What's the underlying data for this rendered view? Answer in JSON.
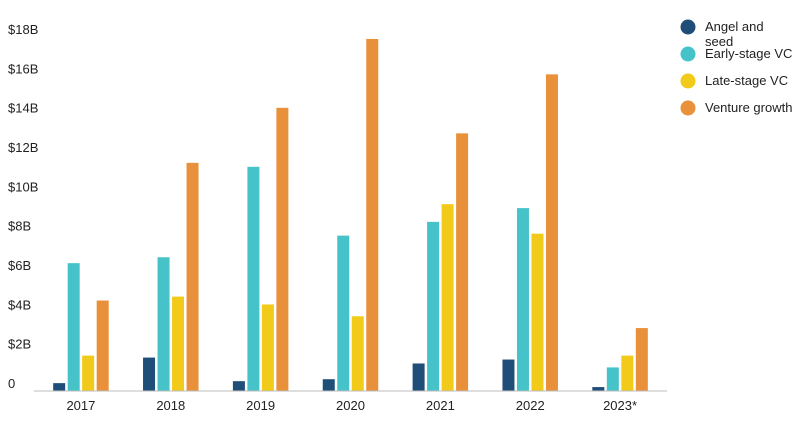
{
  "chart_data": {
    "type": "bar",
    "title": "",
    "xlabel": "",
    "ylabel": "",
    "categories": [
      "2017",
      "2018",
      "2019",
      "2020",
      "2021",
      "2022",
      "2023*"
    ],
    "ylim": [
      0,
      18
    ],
    "y_ticks": [
      0,
      2,
      4,
      6,
      8,
      10,
      12,
      14,
      16,
      18
    ],
    "y_tick_labels": [
      "0",
      "$2B",
      "$4B",
      "$6B",
      "$8B",
      "$10B",
      "$12B",
      "$14B",
      "$16B",
      "$18B"
    ],
    "grid": false,
    "legend_position": "top-right",
    "series": [
      {
        "name": "Angel and seed",
        "label_lines": [
          "Angel and",
          "seed"
        ],
        "color": "#1f4e79",
        "values": [
          0.4,
          1.7,
          0.5,
          0.6,
          1.4,
          1.6,
          0.2
        ]
      },
      {
        "name": "Early-stage VC",
        "label_lines": [
          "Early-stage VC"
        ],
        "color": "#46c3c9",
        "values": [
          6.5,
          6.8,
          11.4,
          7.9,
          8.6,
          9.3,
          1.2
        ]
      },
      {
        "name": "Late-stage VC",
        "label_lines": [
          "Late-stage VC"
        ],
        "color": "#f2ca1a",
        "values": [
          1.8,
          4.8,
          4.4,
          3.8,
          9.5,
          8.0,
          1.8
        ]
      },
      {
        "name": "Venture growth",
        "label_lines": [
          "Venture growth"
        ],
        "color": "#e8903a",
        "values": [
          4.6,
          11.6,
          14.4,
          17.9,
          13.1,
          16.1,
          3.2
        ]
      }
    ]
  }
}
